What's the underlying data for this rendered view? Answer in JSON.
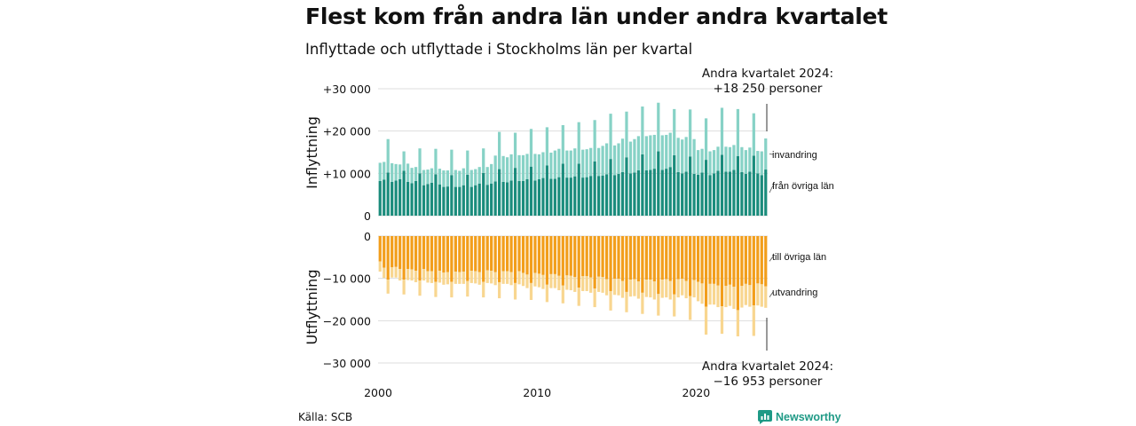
{
  "title": "Flest kom från andra län under andra kvartalet",
  "subtitle": "Inflyttade och utflyttade i Stockholms län per kvartal",
  "source": "Källa: SCB",
  "brand": "Newsworthy",
  "annotation_top": {
    "line1": "Andra kvartalet 2024:",
    "line2": "+18 250 personer"
  },
  "annotation_bottom": {
    "line1": "Andra kvartalet 2024:",
    "line2": "−16 953 personer"
  },
  "colors": {
    "in_lan": "#1a8c7c",
    "invandring": "#87d2c6",
    "ut_lan": "#f29e1b",
    "utvandring": "#f8d690",
    "grid": "#dddddd",
    "brand": "#1f9a86"
  },
  "chart_data": {
    "type": "bar",
    "stacked": true,
    "x_unit": "quarter",
    "x_start": "2000 Q1",
    "x_end": "2024 Q2",
    "x_ticks": [
      "2000",
      "2010",
      "2020"
    ],
    "top_panel": {
      "ylabel": "Inflyttning",
      "yticks": [
        "+30 000",
        "+20 000",
        "+10 000",
        "0"
      ],
      "ylim": [
        0,
        30000
      ],
      "series": [
        {
          "name": "från övriga län",
          "values": [
            8200,
            8500,
            10200,
            8000,
            8300,
            8600,
            10600,
            8000,
            7700,
            8200,
            10000,
            7200,
            7500,
            7800,
            9800,
            7400,
            6800,
            6900,
            9600,
            6800,
            6800,
            7200,
            9700,
            6800,
            7200,
            7600,
            10100,
            7300,
            7600,
            8100,
            11000,
            8000,
            7900,
            8300,
            11300,
            8200,
            8200,
            8600,
            11600,
            8300,
            8600,
            8900,
            11900,
            8700,
            8700,
            9100,
            12300,
            9000,
            9000,
            9300,
            12300,
            9000,
            9100,
            9400,
            12800,
            9400,
            9500,
            9800,
            13400,
            9600,
            9900,
            10300,
            13800,
            10000,
            10200,
            10700,
            14500,
            10700,
            10800,
            11100,
            15200,
            10800,
            11100,
            11500,
            14300,
            10300,
            10000,
            10400,
            14000,
            9900,
            9700,
            10200,
            13200,
            9600,
            10000,
            10600,
            14400,
            10400,
            10400,
            10800,
            14100,
            10300,
            9900,
            10400,
            14200,
            10000,
            9600,
            10900
          ]
        },
        {
          "name": "invandring",
          "values": [
            4300,
            4200,
            7900,
            4400,
            3900,
            3500,
            4600,
            4300,
            3600,
            3300,
            5900,
            3600,
            3400,
            3400,
            6000,
            3700,
            3900,
            3800,
            6000,
            4000,
            3800,
            4000,
            5700,
            4000,
            3800,
            3900,
            5800,
            4200,
            4600,
            6100,
            8800,
            6100,
            5900,
            6200,
            8300,
            6100,
            6100,
            6000,
            8900,
            6300,
            5900,
            6100,
            9000,
            6200,
            6700,
            6700,
            9100,
            6400,
            6400,
            6600,
            9800,
            6600,
            6600,
            6600,
            9800,
            6600,
            7000,
            7300,
            10700,
            7000,
            7200,
            7900,
            10800,
            7500,
            7900,
            8100,
            11300,
            8100,
            8200,
            8000,
            11500,
            8200,
            8000,
            8100,
            10900,
            8100,
            8000,
            8200,
            11100,
            8200,
            5800,
            5600,
            9800,
            5600,
            5500,
            5700,
            11100,
            5900,
            5800,
            5900,
            11100,
            5900,
            5600,
            5700,
            10000,
            5300,
            5600,
            7350
          ]
        }
      ]
    },
    "bottom_panel": {
      "ylabel": "Utflyttning",
      "yticks": [
        "0",
        "−10 000",
        "−20 000",
        "−30 000"
      ],
      "ylim": [
        -30000,
        0
      ],
      "series": [
        {
          "name": "till övriga län",
          "values": [
            -6000,
            -7500,
            -10300,
            -7400,
            -7300,
            -7800,
            -10300,
            -7800,
            -7900,
            -8200,
            -10500,
            -7800,
            -8300,
            -8300,
            -10800,
            -8200,
            -8600,
            -8500,
            -10800,
            -8400,
            -8500,
            -8400,
            -10600,
            -8200,
            -8300,
            -8500,
            -10800,
            -8100,
            -8200,
            -8500,
            -10900,
            -8300,
            -8300,
            -8500,
            -11100,
            -8300,
            -8700,
            -9100,
            -11100,
            -8700,
            -8900,
            -9200,
            -11500,
            -9000,
            -9000,
            -9400,
            -11700,
            -9300,
            -9400,
            -9700,
            -12200,
            -9500,
            -9500,
            -9800,
            -12400,
            -9600,
            -9700,
            -10200,
            -13000,
            -10100,
            -10100,
            -10600,
            -13200,
            -10300,
            -10200,
            -10700,
            -13400,
            -10300,
            -10300,
            -10700,
            -13700,
            -10300,
            -10200,
            -10600,
            -13800,
            -10200,
            -10100,
            -10600,
            -14200,
            -10400,
            -10800,
            -11200,
            -16700,
            -11300,
            -11300,
            -11700,
            -16600,
            -11800,
            -11500,
            -12000,
            -17500,
            -11800,
            -11300,
            -11600,
            -16400,
            -11200,
            -11400,
            -11900
          ]
        },
        {
          "name": "utvandring",
          "values": [
            -2400,
            -2400,
            -3300,
            -2400,
            -2500,
            -2700,
            -3500,
            -2600,
            -2600,
            -2700,
            -3600,
            -2700,
            -2700,
            -2800,
            -3600,
            -2800,
            -2900,
            -2900,
            -3700,
            -2900,
            -2800,
            -2900,
            -3700,
            -2900,
            -2900,
            -3000,
            -3700,
            -3000,
            -3000,
            -3100,
            -3800,
            -3000,
            -3000,
            -3100,
            -3900,
            -3100,
            -3100,
            -3200,
            -4000,
            -3200,
            -3200,
            -3300,
            -4100,
            -3300,
            -3300,
            -3400,
            -4200,
            -3400,
            -3400,
            -3500,
            -4300,
            -3500,
            -3500,
            -3600,
            -4400,
            -3600,
            -3700,
            -3800,
            -4600,
            -3800,
            -3900,
            -4000,
            -4800,
            -4000,
            -4000,
            -4100,
            -5000,
            -4100,
            -4200,
            -4300,
            -5100,
            -4300,
            -4300,
            -4400,
            -5200,
            -4300,
            -3900,
            -4100,
            -5600,
            -4100,
            -4600,
            -4800,
            -6600,
            -4900,
            -4900,
            -5100,
            -6500,
            -5000,
            -5000,
            -5200,
            -6200,
            -5100,
            -5000,
            -5100,
            -7200,
            -5200,
            -5300,
            -5053
          ]
        }
      ]
    },
    "grid": true
  }
}
